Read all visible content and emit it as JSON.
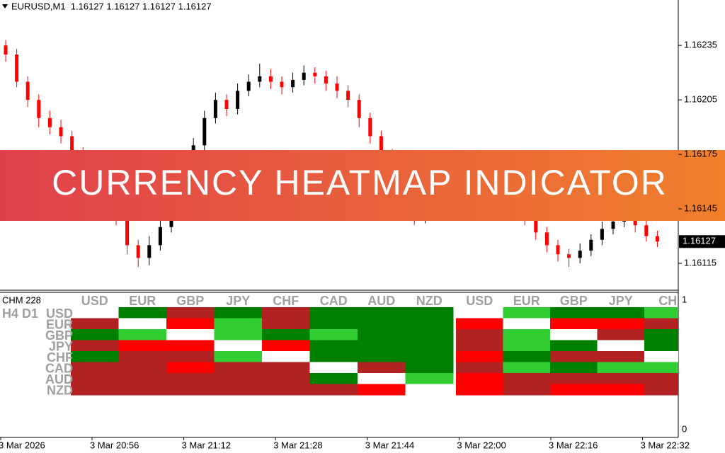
{
  "header": "EURUSD,M1  1.16127 1.16127 1.16127 1.16127",
  "banner": "CURRENCY HEATMAP INDICATOR",
  "chart_data": {
    "type": "candlestick",
    "up_color": "#000000",
    "down_color": "#ff0000",
    "ylim": [
      1.16101,
      1.1626
    ],
    "yticks": [
      1.16235,
      1.16205,
      1.16175,
      1.16145,
      1.16115
    ],
    "current_price": 1.16127,
    "x_labels": [
      "3 Mar 2026",
      "3 Mar 20:56",
      "3 Mar 21:12",
      "3 Mar 21:28",
      "3 Mar 21:44",
      "3 Mar 22:00",
      "3 Mar 22:16",
      "3 Mar 22:32"
    ],
    "candles": [
      [
        1.16235,
        1.16238,
        1.16226,
        1.1623
      ],
      [
        1.1623,
        1.16233,
        1.16212,
        1.16215
      ],
      [
        1.16215,
        1.16218,
        1.16201,
        1.16205
      ],
      [
        1.16205,
        1.16208,
        1.1619,
        1.16195
      ],
      [
        1.16195,
        1.16199,
        1.16186,
        1.1619
      ],
      [
        1.1619,
        1.16194,
        1.16181,
        1.16185
      ],
      [
        1.16185,
        1.16188,
        1.1617,
        1.16175
      ],
      [
        1.16175,
        1.16179,
        1.16166,
        1.1617
      ],
      [
        1.1617,
        1.16173,
        1.16156,
        1.1616
      ],
      [
        1.1616,
        1.16163,
        1.16145,
        1.1615
      ],
      [
        1.1615,
        1.16153,
        1.16136,
        1.1614
      ],
      [
        1.1614,
        1.16143,
        1.1612,
        1.16125
      ],
      [
        1.16125,
        1.16128,
        1.16113,
        1.16118
      ],
      [
        1.16118,
        1.1613,
        1.16114,
        1.16125
      ],
      [
        1.16125,
        1.16139,
        1.16122,
        1.16135
      ],
      [
        1.16135,
        1.16153,
        1.16132,
        1.1615
      ],
      [
        1.1615,
        1.16168,
        1.16147,
        1.16165
      ],
      [
        1.16165,
        1.16184,
        1.16162,
        1.1618
      ],
      [
        1.1618,
        1.16199,
        1.16177,
        1.16195
      ],
      [
        1.16195,
        1.16209,
        1.16192,
        1.16205
      ],
      [
        1.16205,
        1.16208,
        1.16196,
        1.162
      ],
      [
        1.162,
        1.16214,
        1.16197,
        1.1621
      ],
      [
        1.1621,
        1.16219,
        1.16207,
        1.16215
      ],
      [
        1.16215,
        1.16225,
        1.16212,
        1.16218
      ],
      [
        1.16218,
        1.16222,
        1.16211,
        1.16215
      ],
      [
        1.16215,
        1.16218,
        1.16208,
        1.16212
      ],
      [
        1.16212,
        1.1622,
        1.16209,
        1.16216
      ],
      [
        1.16216,
        1.16224,
        1.16213,
        1.1622
      ],
      [
        1.1622,
        1.16223,
        1.16214,
        1.16218
      ],
      [
        1.16218,
        1.16221,
        1.1621,
        1.16214
      ],
      [
        1.16214,
        1.16218,
        1.16206,
        1.1621
      ],
      [
        1.1621,
        1.16213,
        1.16201,
        1.16205
      ],
      [
        1.16205,
        1.16208,
        1.1619,
        1.16195
      ],
      [
        1.16195,
        1.16198,
        1.16181,
        1.16185
      ],
      [
        1.16185,
        1.16188,
        1.1617,
        1.16175
      ],
      [
        1.16175,
        1.16178,
        1.16156,
        1.1616
      ],
      [
        1.1616,
        1.16163,
        1.16141,
        1.16145
      ],
      [
        1.16145,
        1.16149,
        1.16136,
        1.1614
      ],
      [
        1.1614,
        1.16146,
        1.16137,
        1.16142
      ],
      [
        1.16142,
        1.16154,
        1.16139,
        1.1615
      ],
      [
        1.1615,
        1.16164,
        1.16147,
        1.1616
      ],
      [
        1.1616,
        1.16169,
        1.16157,
        1.16165
      ],
      [
        1.16165,
        1.16172,
        1.16162,
        1.16168
      ],
      [
        1.16168,
        1.16174,
        1.16165,
        1.1617
      ],
      [
        1.1617,
        1.16173,
        1.16161,
        1.16165
      ],
      [
        1.16165,
        1.16168,
        1.16156,
        1.1616
      ],
      [
        1.1616,
        1.16163,
        1.16146,
        1.1615
      ],
      [
        1.1615,
        1.16153,
        1.16136,
        1.1614
      ],
      [
        1.1614,
        1.16144,
        1.16128,
        1.16132
      ],
      [
        1.16132,
        1.16135,
        1.16121,
        1.16125
      ],
      [
        1.16125,
        1.16128,
        1.16116,
        1.1612
      ],
      [
        1.1612,
        1.16123,
        1.16113,
        1.16118
      ],
      [
        1.16118,
        1.16126,
        1.16115,
        1.16122
      ],
      [
        1.16122,
        1.16131,
        1.16119,
        1.16128
      ],
      [
        1.16128,
        1.16138,
        1.16125,
        1.16134
      ],
      [
        1.16134,
        1.16141,
        1.16131,
        1.16138
      ],
      [
        1.16138,
        1.16144,
        1.16135,
        1.1614
      ],
      [
        1.1614,
        1.16143,
        1.16132,
        1.16136
      ],
      [
        1.16136,
        1.16139,
        1.16127,
        1.1613
      ],
      [
        1.1613,
        1.16133,
        1.16124,
        1.16127
      ]
    ]
  },
  "heatmap": {
    "title": "CHM 228",
    "timeframes": "H4 D1",
    "scale": [
      1,
      0
    ],
    "columns": [
      "USD",
      "EUR",
      "GBP",
      "JPY",
      "CHF",
      "CAD",
      "AUD",
      "NZD",
      "USD",
      "EUR",
      "GBP",
      "JPY",
      "CH"
    ],
    "rows": [
      "USD",
      "EUR",
      "GBP",
      "JPY",
      "CHF",
      "CAD",
      "AUD",
      "NZD"
    ],
    "palette": {
      "G": "#008000",
      "g": "#32cd32",
      "R": "#b22222",
      "r": "#ff0000",
      "w": "#ffffff"
    },
    "left": [
      [
        "w",
        "G",
        "R",
        "G",
        "R",
        "G",
        "G",
        "G"
      ],
      [
        "R",
        "w",
        "r",
        "g",
        "R",
        "G",
        "G",
        "G"
      ],
      [
        "G",
        "g",
        "w",
        "g",
        "G",
        "g",
        "G",
        "G"
      ],
      [
        "R",
        "r",
        "r",
        "w",
        "r",
        "G",
        "G",
        "G"
      ],
      [
        "G",
        "R",
        "R",
        "g",
        "w",
        "G",
        "G",
        "G"
      ],
      [
        "R",
        "R",
        "r",
        "R",
        "R",
        "w",
        "R",
        "G"
      ],
      [
        "R",
        "R",
        "R",
        "R",
        "R",
        "G",
        "w",
        "g"
      ],
      [
        "R",
        "R",
        "R",
        "R",
        "R",
        "R",
        "r",
        "w"
      ]
    ],
    "right": [
      [
        "w",
        "g",
        "G",
        "G",
        "g"
      ],
      [
        "r",
        "w",
        "r",
        "r",
        "R"
      ],
      [
        "R",
        "g",
        "w",
        "R",
        "G"
      ],
      [
        "R",
        "g",
        "G",
        "w",
        "G"
      ],
      [
        "r",
        "G",
        "R",
        "R",
        "w"
      ],
      [
        "R",
        "g",
        "G",
        "g",
        "g"
      ],
      [
        "r",
        "R",
        "R",
        "R",
        "R"
      ],
      [
        "r",
        "R",
        "r",
        "r",
        "R"
      ]
    ]
  }
}
